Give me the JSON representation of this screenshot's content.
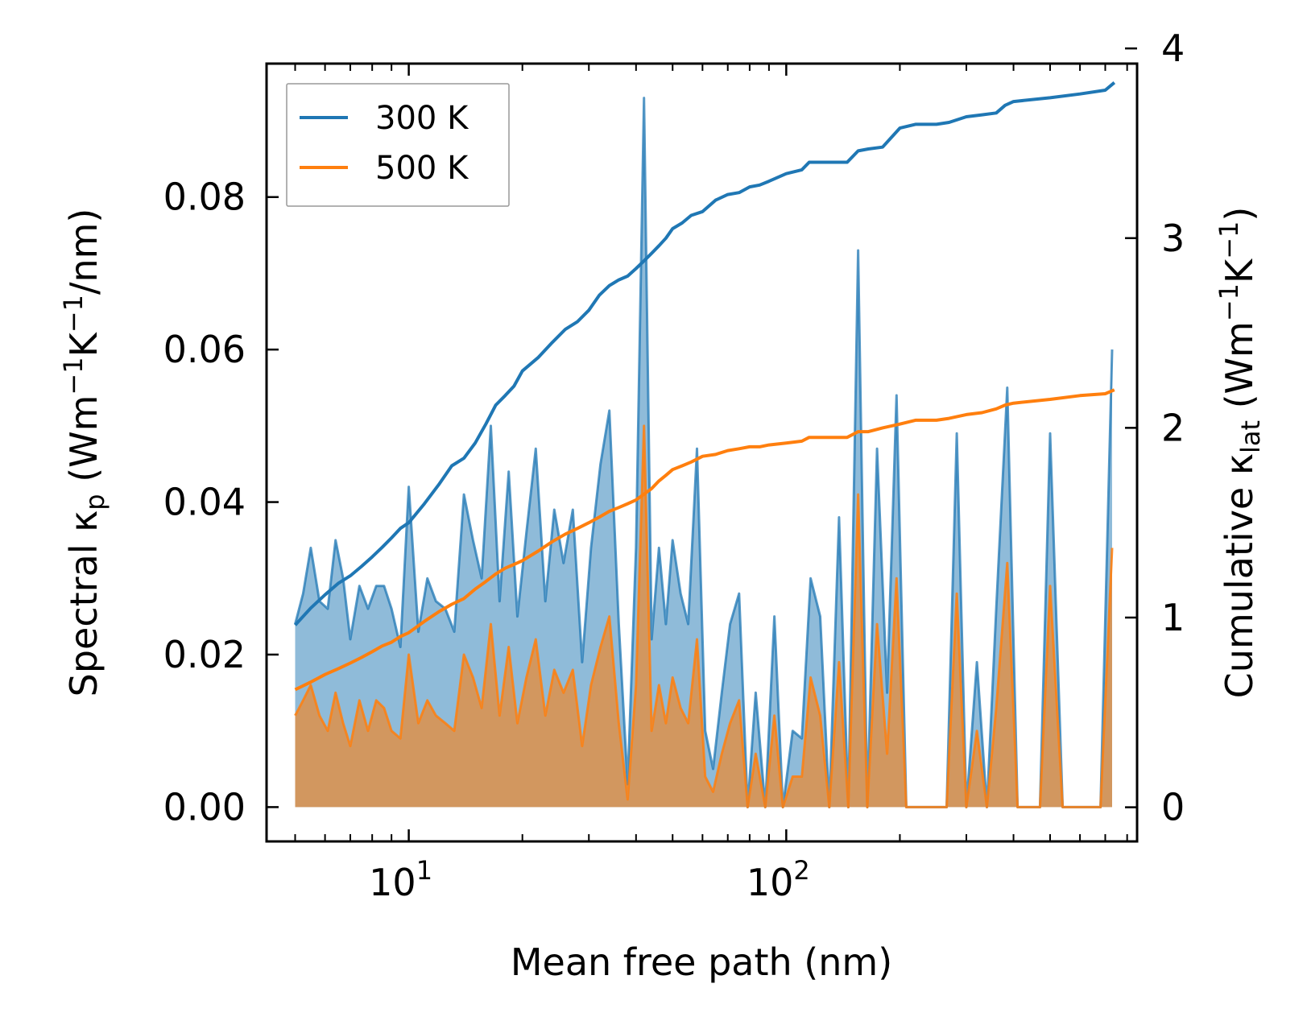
{
  "chart_data": {
    "type": "line",
    "x_scale": "log",
    "xlabel": "Mean free path (nm)",
    "xlim": [
      4.2,
      850
    ],
    "x_tick_labels": [
      {
        "value": 10,
        "base": "10",
        "exp": "1"
      },
      {
        "value": 100,
        "base": "10",
        "exp": "2"
      }
    ],
    "ylabel_left": {
      "pre": "Spectral κ",
      "sub": "p",
      "mid": " (Wm",
      "sup1": "−1",
      "mid2": "K",
      "sup2": "−1",
      "post": "/nm)"
    },
    "ylabel_right": {
      "pre": "Cumulative κ",
      "sub": "lat",
      "mid": " (Wm",
      "sup1": "−1",
      "mid2": "K",
      "sup2": "−1",
      "post": ")"
    },
    "ylim_left": [
      -0.0045,
      0.0975
    ],
    "ylim_right": [
      -0.18,
      3.92
    ],
    "left_ticks": [
      "0.00",
      "0.02",
      "0.04",
      "0.06",
      "0.08"
    ],
    "right_ticks": [
      "0",
      "1",
      "2",
      "3",
      "4"
    ],
    "legend": {
      "position": "top-left",
      "entries": [
        {
          "label": "300 K",
          "color": "#1f77b4"
        },
        {
          "label": "500 K",
          "color": "#ff7f0e"
        }
      ]
    },
    "series_spectral": [
      {
        "name": "300 K",
        "color": "#1f77b4",
        "x": [
          5.0,
          5.25,
          5.5,
          5.8,
          6.1,
          6.4,
          6.7,
          7.0,
          7.4,
          7.8,
          8.2,
          8.6,
          9.0,
          9.5,
          10.0,
          10.6,
          11.2,
          11.8,
          12.5,
          13.2,
          14.0,
          14.8,
          15.6,
          16.5,
          17.4,
          18.4,
          19.4,
          20.5,
          21.7,
          23.0,
          24.3,
          25.7,
          27.2,
          28.8,
          30.4,
          32.2,
          34.0,
          36.0,
          38.0,
          40.0,
          42.0,
          44.0,
          46.0,
          48.0,
          50.0,
          52.5,
          55.0,
          58.0,
          61.0,
          64.0,
          67.5,
          71.0,
          75.0,
          79.0,
          83.0,
          88.0,
          93.0,
          98.0,
          104.0,
          110.0,
          116.0,
          123.0,
          130.0,
          138.0,
          146.0,
          155.0,
          164.0,
          174.0,
          185.0,
          196.0,
          208.0,
          221.0,
          235.0,
          250.0,
          266.0,
          283.0,
          300.0,
          320.0,
          340.0,
          360.0,
          385.0,
          410.0,
          440.0,
          470.0,
          500.0,
          540.0,
          580.0,
          630.0,
          680.0,
          730.0
        ],
        "y": [
          0.024,
          0.028,
          0.034,
          0.027,
          0.026,
          0.035,
          0.03,
          0.022,
          0.029,
          0.026,
          0.029,
          0.029,
          0.026,
          0.021,
          0.042,
          0.023,
          0.03,
          0.027,
          0.026,
          0.023,
          0.041,
          0.035,
          0.03,
          0.05,
          0.027,
          0.044,
          0.025,
          0.036,
          0.047,
          0.027,
          0.039,
          0.032,
          0.039,
          0.019,
          0.034,
          0.045,
          0.052,
          0.024,
          0.003,
          0.034,
          0.093,
          0.022,
          0.034,
          0.024,
          0.035,
          0.028,
          0.024,
          0.047,
          0.01,
          0.005,
          0.015,
          0.024,
          0.028,
          0.0,
          0.015,
          0.0,
          0.025,
          0.0,
          0.01,
          0.009,
          0.03,
          0.025,
          0.0,
          0.038,
          0.0,
          0.073,
          0.0,
          0.047,
          0.015,
          0.054,
          0.0,
          0.0,
          0.0,
          0.0,
          0.0,
          0.049,
          0.0,
          0.019,
          0.0,
          0.026,
          0.055,
          0.0,
          0.0,
          0.0,
          0.049,
          0.0,
          0.0,
          0.0,
          0.0,
          0.06
        ]
      },
      {
        "name": "500 K",
        "color": "#ff7f0e",
        "x": [
          5.0,
          5.25,
          5.5,
          5.8,
          6.1,
          6.4,
          6.7,
          7.0,
          7.4,
          7.8,
          8.2,
          8.6,
          9.0,
          9.5,
          10.0,
          10.6,
          11.2,
          11.8,
          12.5,
          13.2,
          14.0,
          14.8,
          15.6,
          16.5,
          17.4,
          18.4,
          19.4,
          20.5,
          21.7,
          23.0,
          24.3,
          25.7,
          27.2,
          28.8,
          30.4,
          32.2,
          34.0,
          36.0,
          38.0,
          40.0,
          42.0,
          44.0,
          46.0,
          48.0,
          50.0,
          52.5,
          55.0,
          58.0,
          61.0,
          64.0,
          67.5,
          71.0,
          75.0,
          79.0,
          83.0,
          88.0,
          93.0,
          98.0,
          104.0,
          110.0,
          116.0,
          123.0,
          130.0,
          138.0,
          146.0,
          155.0,
          164.0,
          174.0,
          185.0,
          196.0,
          208.0,
          221.0,
          235.0,
          250.0,
          266.0,
          283.0,
          300.0,
          320.0,
          340.0,
          360.0,
          385.0,
          410.0,
          440.0,
          470.0,
          500.0,
          540.0,
          580.0,
          630.0,
          680.0,
          730.0
        ],
        "y": [
          0.012,
          0.014,
          0.016,
          0.012,
          0.01,
          0.015,
          0.011,
          0.008,
          0.014,
          0.01,
          0.014,
          0.013,
          0.01,
          0.009,
          0.02,
          0.011,
          0.014,
          0.012,
          0.011,
          0.01,
          0.02,
          0.017,
          0.013,
          0.024,
          0.012,
          0.021,
          0.011,
          0.017,
          0.022,
          0.012,
          0.018,
          0.015,
          0.018,
          0.008,
          0.016,
          0.021,
          0.025,
          0.011,
          0.001,
          0.016,
          0.05,
          0.01,
          0.016,
          0.011,
          0.017,
          0.013,
          0.011,
          0.022,
          0.004,
          0.002,
          0.007,
          0.011,
          0.014,
          0.0,
          0.007,
          0.0,
          0.012,
          0.0,
          0.004,
          0.004,
          0.017,
          0.012,
          0.0,
          0.019,
          0.0,
          0.041,
          0.0,
          0.024,
          0.007,
          0.03,
          0.0,
          0.0,
          0.0,
          0.0,
          0.0,
          0.028,
          0.0,
          0.01,
          0.0,
          0.013,
          0.032,
          0.0,
          0.0,
          0.0,
          0.029,
          0.0,
          0.0,
          0.0,
          0.0,
          0.034
        ]
      }
    ],
    "series_cumulative": [
      {
        "name": "300 K",
        "color": "#1f77b4",
        "x": [
          5.0,
          5.5,
          6.0,
          6.5,
          7.0,
          7.5,
          8.0,
          8.5,
          9.0,
          9.5,
          10.0,
          11.0,
          12.0,
          13.0,
          14.0,
          15.0,
          16.0,
          17.0,
          18.0,
          19.0,
          20.0,
          22.0,
          24.0,
          26.0,
          28.0,
          30.0,
          32.0,
          34.0,
          36.0,
          38.0,
          40.0,
          42.0,
          44.0,
          46.0,
          48.0,
          50.0,
          53.0,
          56.0,
          60.0,
          65.0,
          70.0,
          75.0,
          80.0,
          85.0,
          90.0,
          100.0,
          110.0,
          115.0,
          125.0,
          145.0,
          155.0,
          165.0,
          180.0,
          200.0,
          220.0,
          250.0,
          270.0,
          300.0,
          330.0,
          360.0,
          380.0,
          400.0,
          500.0,
          600.0,
          700.0,
          740.0
        ],
        "y": [
          0.96,
          1.05,
          1.12,
          1.18,
          1.22,
          1.27,
          1.32,
          1.37,
          1.42,
          1.47,
          1.5,
          1.6,
          1.7,
          1.8,
          1.84,
          1.92,
          2.02,
          2.12,
          2.17,
          2.22,
          2.3,
          2.37,
          2.45,
          2.52,
          2.56,
          2.62,
          2.7,
          2.75,
          2.78,
          2.8,
          2.84,
          2.88,
          2.92,
          2.96,
          3.0,
          3.05,
          3.08,
          3.12,
          3.14,
          3.2,
          3.23,
          3.24,
          3.27,
          3.28,
          3.3,
          3.34,
          3.36,
          3.4,
          3.4,
          3.4,
          3.46,
          3.47,
          3.48,
          3.58,
          3.6,
          3.6,
          3.61,
          3.64,
          3.65,
          3.66,
          3.7,
          3.72,
          3.74,
          3.76,
          3.78,
          3.82
        ]
      },
      {
        "name": "500 K",
        "color": "#ff7f0e",
        "x": [
          5.0,
          5.5,
          6.0,
          6.5,
          7.0,
          7.5,
          8.0,
          8.5,
          9.0,
          9.5,
          10.0,
          11.0,
          12.0,
          13.0,
          14.0,
          15.0,
          16.0,
          17.0,
          18.0,
          19.0,
          20.0,
          22.0,
          24.0,
          26.0,
          28.0,
          30.0,
          32.0,
          34.0,
          36.0,
          38.0,
          40.0,
          42.0,
          44.0,
          46.0,
          48.0,
          50.0,
          53.0,
          56.0,
          60.0,
          65.0,
          70.0,
          75.0,
          80.0,
          85.0,
          90.0,
          100.0,
          110.0,
          115.0,
          125.0,
          145.0,
          155.0,
          165.0,
          180.0,
          200.0,
          220.0,
          250.0,
          270.0,
          300.0,
          330.0,
          360.0,
          380.0,
          400.0,
          500.0,
          600.0,
          700.0,
          740.0
        ],
        "y": [
          0.62,
          0.66,
          0.7,
          0.73,
          0.76,
          0.79,
          0.82,
          0.85,
          0.87,
          0.9,
          0.92,
          0.98,
          1.03,
          1.07,
          1.1,
          1.15,
          1.19,
          1.23,
          1.26,
          1.28,
          1.3,
          1.35,
          1.4,
          1.44,
          1.47,
          1.5,
          1.53,
          1.56,
          1.58,
          1.6,
          1.62,
          1.65,
          1.68,
          1.72,
          1.75,
          1.78,
          1.8,
          1.82,
          1.85,
          1.86,
          1.88,
          1.89,
          1.9,
          1.9,
          1.91,
          1.92,
          1.93,
          1.95,
          1.95,
          1.95,
          1.98,
          1.98,
          2.0,
          2.02,
          2.04,
          2.04,
          2.05,
          2.07,
          2.08,
          2.1,
          2.12,
          2.13,
          2.15,
          2.17,
          2.18,
          2.2
        ]
      }
    ]
  }
}
